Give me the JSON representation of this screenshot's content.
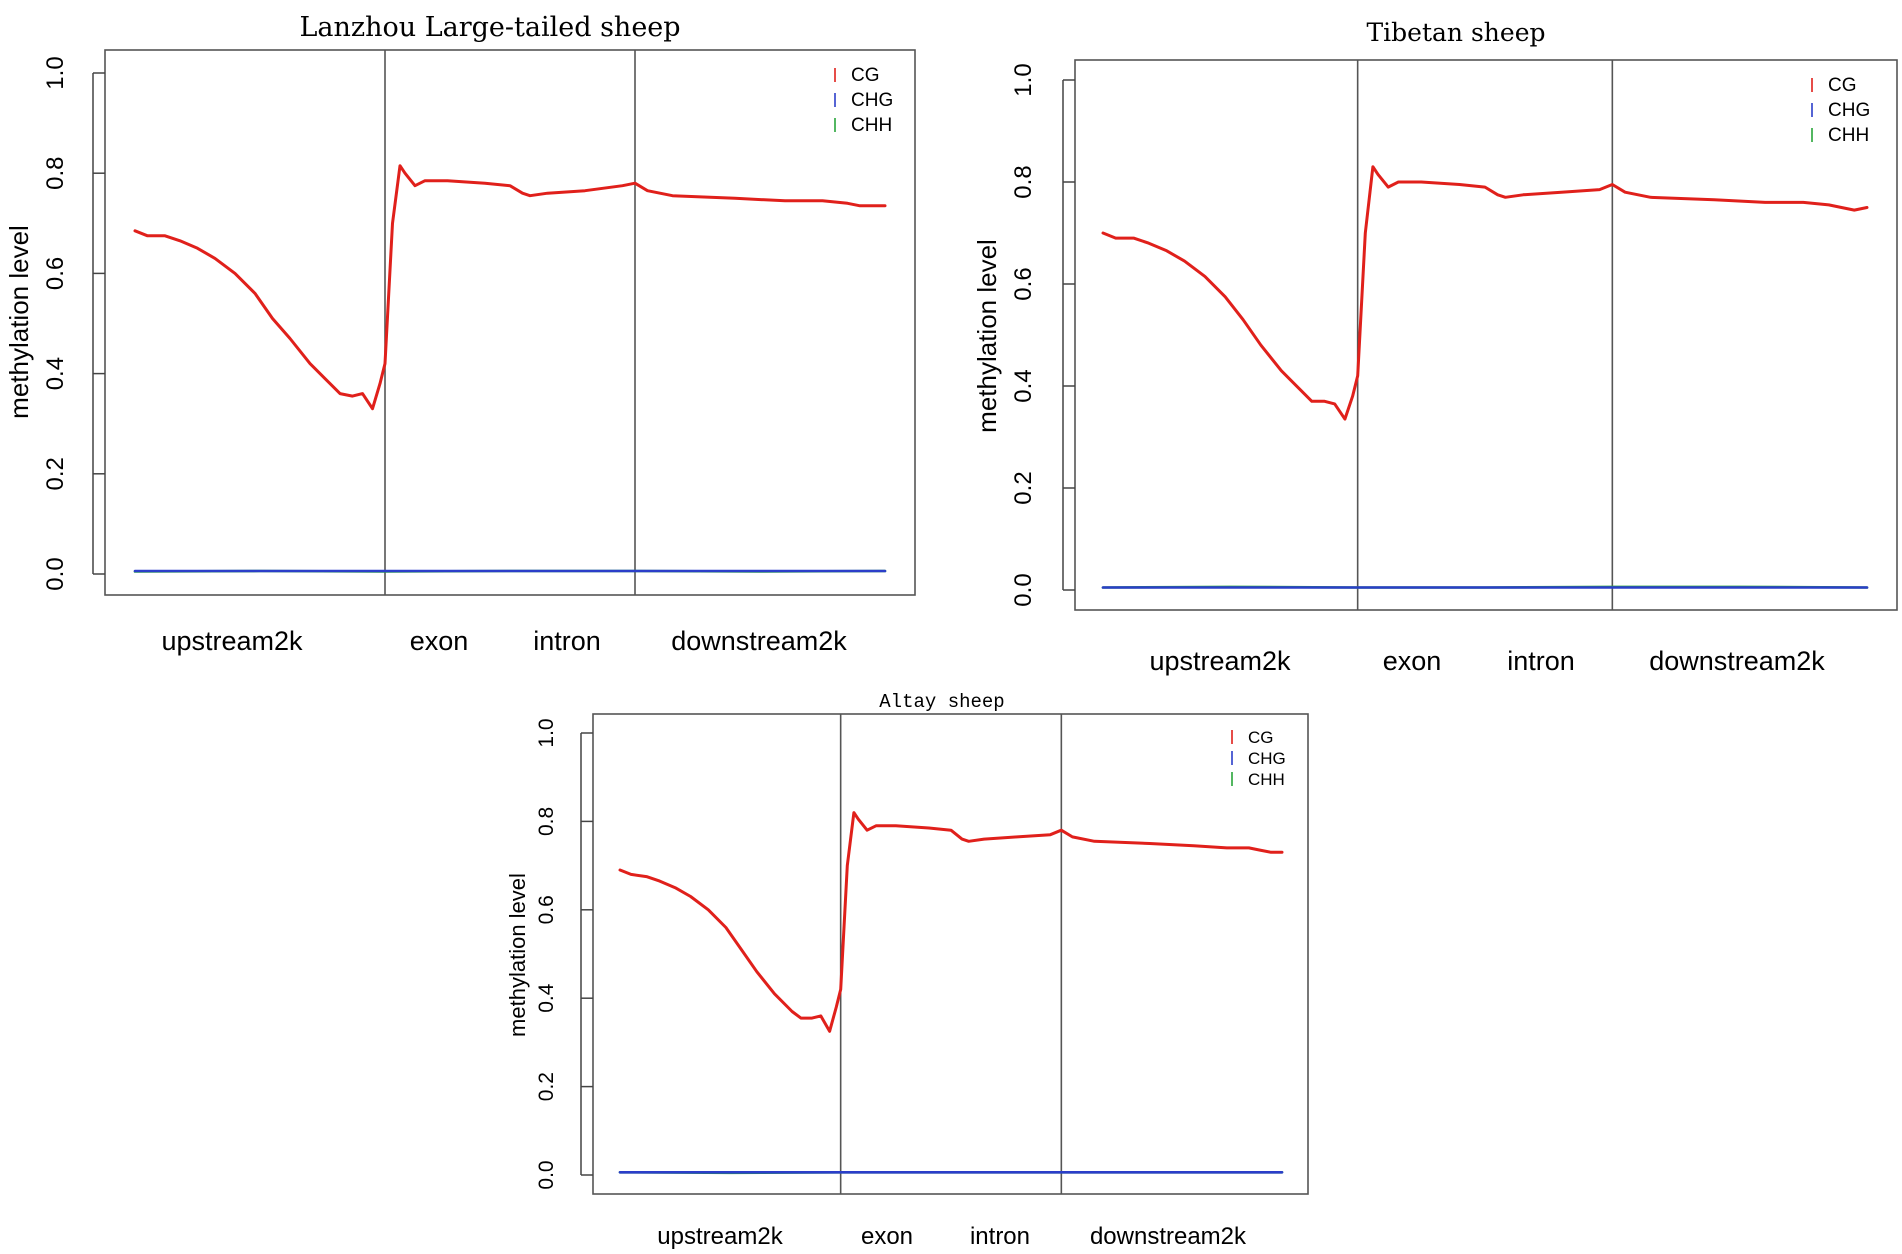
{
  "chart_data": [
    {
      "type": "line",
      "title": "Lanzhou Large-tailed sheep",
      "xlabel": "",
      "ylabel": "methylation level",
      "ylim": [
        0,
        1
      ],
      "yticks": [
        "0.0",
        "0.2",
        "0.4",
        "0.6",
        "0.8",
        "1.0"
      ],
      "region_labels": [
        "upstream2k",
        "exon",
        "intron",
        "downstream2k"
      ],
      "region_boundaries": [
        100,
        200
      ],
      "x_range": [
        0,
        300
      ],
      "legend": [
        "CG",
        "CHG",
        "CHH"
      ],
      "legend_position": "top-right",
      "grid": false,
      "series": [
        {
          "name": "CG",
          "color": "#e0201b",
          "points": [
            [
              0,
              0.685
            ],
            [
              5,
              0.675
            ],
            [
              12,
              0.675
            ],
            [
              18,
              0.665
            ],
            [
              25,
              0.65
            ],
            [
              32,
              0.63
            ],
            [
              40,
              0.6
            ],
            [
              48,
              0.56
            ],
            [
              55,
              0.51
            ],
            [
              62,
              0.47
            ],
            [
              70,
              0.42
            ],
            [
              78,
              0.38
            ],
            [
              82,
              0.36
            ],
            [
              87,
              0.355
            ],
            [
              91,
              0.36
            ],
            [
              95,
              0.33
            ],
            [
              98,
              0.38
            ],
            [
              100,
              0.42
            ],
            [
              103,
              0.7
            ],
            [
              106,
              0.815
            ],
            [
              108,
              0.8
            ],
            [
              112,
              0.775
            ],
            [
              116,
              0.785
            ],
            [
              125,
              0.785
            ],
            [
              140,
              0.78
            ],
            [
              150,
              0.775
            ],
            [
              155,
              0.76
            ],
            [
              158,
              0.755
            ],
            [
              165,
              0.76
            ],
            [
              180,
              0.765
            ],
            [
              195,
              0.775
            ],
            [
              200,
              0.78
            ],
            [
              205,
              0.765
            ],
            [
              215,
              0.755
            ],
            [
              240,
              0.75
            ],
            [
              260,
              0.745
            ],
            [
              275,
              0.745
            ],
            [
              285,
              0.74
            ],
            [
              290,
              0.735
            ],
            [
              295,
              0.735
            ],
            [
              300,
              0.735
            ]
          ]
        },
        {
          "name": "CHG",
          "color": "#2b3ec9",
          "points": [
            [
              0,
              0.006
            ],
            [
              100,
              0.006
            ],
            [
              200,
              0.006
            ],
            [
              300,
              0.006
            ]
          ]
        },
        {
          "name": "CHH",
          "color": "#28a53a",
          "points": [
            [
              0,
              0.005
            ],
            [
              50,
              0.006
            ],
            [
              100,
              0.005
            ],
            [
              150,
              0.006
            ],
            [
              200,
              0.006
            ],
            [
              250,
              0.005
            ],
            [
              300,
              0.006
            ]
          ]
        }
      ]
    },
    {
      "type": "line",
      "title": "Tibetan sheep",
      "xlabel": "",
      "ylabel": "methylation level",
      "ylim": [
        0,
        1
      ],
      "yticks": [
        "0.0",
        "0.2",
        "0.4",
        "0.6",
        "0.8",
        "1.0"
      ],
      "region_labels": [
        "upstream2k",
        "exon",
        "intron",
        "downstream2k"
      ],
      "region_boundaries": [
        100,
        200
      ],
      "x_range": [
        0,
        300
      ],
      "legend": [
        "CG",
        "CHG",
        "CHH"
      ],
      "legend_position": "top-right",
      "grid": false,
      "series": [
        {
          "name": "CG",
          "color": "#e0201b",
          "points": [
            [
              0,
              0.7
            ],
            [
              5,
              0.69
            ],
            [
              12,
              0.69
            ],
            [
              18,
              0.68
            ],
            [
              25,
              0.665
            ],
            [
              32,
              0.645
            ],
            [
              40,
              0.615
            ],
            [
              48,
              0.575
            ],
            [
              55,
              0.53
            ],
            [
              62,
              0.48
            ],
            [
              70,
              0.43
            ],
            [
              78,
              0.39
            ],
            [
              82,
              0.37
            ],
            [
              87,
              0.37
            ],
            [
              91,
              0.365
            ],
            [
              95,
              0.335
            ],
            [
              98,
              0.38
            ],
            [
              100,
              0.42
            ],
            [
              103,
              0.7
            ],
            [
              106,
              0.83
            ],
            [
              108,
              0.815
            ],
            [
              112,
              0.79
            ],
            [
              116,
              0.8
            ],
            [
              125,
              0.8
            ],
            [
              140,
              0.795
            ],
            [
              150,
              0.79
            ],
            [
              155,
              0.775
            ],
            [
              158,
              0.77
            ],
            [
              165,
              0.775
            ],
            [
              180,
              0.78
            ],
            [
              195,
              0.785
            ],
            [
              200,
              0.795
            ],
            [
              205,
              0.78
            ],
            [
              215,
              0.77
            ],
            [
              240,
              0.765
            ],
            [
              260,
              0.76
            ],
            [
              275,
              0.76
            ],
            [
              285,
              0.755
            ],
            [
              290,
              0.75
            ],
            [
              295,
              0.745
            ],
            [
              300,
              0.75
            ]
          ]
        },
        {
          "name": "CHG",
          "color": "#2b3ec9",
          "points": [
            [
              0,
              0.005
            ],
            [
              100,
              0.005
            ],
            [
              200,
              0.005
            ],
            [
              300,
              0.005
            ]
          ]
        },
        {
          "name": "CHH",
          "color": "#28a53a",
          "points": [
            [
              0,
              0.005
            ],
            [
              50,
              0.006
            ],
            [
              100,
              0.005
            ],
            [
              150,
              0.005
            ],
            [
              200,
              0.006
            ],
            [
              250,
              0.006
            ],
            [
              300,
              0.005
            ]
          ]
        }
      ]
    },
    {
      "type": "line",
      "title": "Altay sheep",
      "xlabel": "",
      "ylabel": "methylation level",
      "ylim": [
        0,
        1
      ],
      "yticks": [
        "0.0",
        "0.2",
        "0.4",
        "0.6",
        "0.8",
        "1.0"
      ],
      "region_labels": [
        "upstream2k",
        "exon",
        "intron",
        "downstream2k"
      ],
      "region_boundaries": [
        100,
        200
      ],
      "x_range": [
        0,
        300
      ],
      "legend": [
        "CG",
        "CHG",
        "CHH"
      ],
      "legend_position": "top-right",
      "grid": false,
      "series": [
        {
          "name": "CG",
          "color": "#e0201b",
          "points": [
            [
              0,
              0.69
            ],
            [
              5,
              0.68
            ],
            [
              12,
              0.675
            ],
            [
              18,
              0.665
            ],
            [
              25,
              0.65
            ],
            [
              32,
              0.63
            ],
            [
              40,
              0.6
            ],
            [
              48,
              0.56
            ],
            [
              55,
              0.51
            ],
            [
              62,
              0.46
            ],
            [
              70,
              0.41
            ],
            [
              78,
              0.37
            ],
            [
              82,
              0.355
            ],
            [
              87,
              0.355
            ],
            [
              91,
              0.36
            ],
            [
              95,
              0.325
            ],
            [
              98,
              0.38
            ],
            [
              100,
              0.42
            ],
            [
              103,
              0.7
            ],
            [
              106,
              0.82
            ],
            [
              108,
              0.805
            ],
            [
              112,
              0.78
            ],
            [
              116,
              0.79
            ],
            [
              125,
              0.79
            ],
            [
              140,
              0.785
            ],
            [
              150,
              0.78
            ],
            [
              155,
              0.76
            ],
            [
              158,
              0.755
            ],
            [
              165,
              0.76
            ],
            [
              180,
              0.765
            ],
            [
              195,
              0.77
            ],
            [
              200,
              0.78
            ],
            [
              205,
              0.765
            ],
            [
              215,
              0.755
            ],
            [
              240,
              0.75
            ],
            [
              260,
              0.745
            ],
            [
              275,
              0.74
            ],
            [
              285,
              0.74
            ],
            [
              290,
              0.735
            ],
            [
              295,
              0.73
            ],
            [
              300,
              0.73
            ]
          ]
        },
        {
          "name": "CHG",
          "color": "#2b3ec9",
          "points": [
            [
              0,
              0.006
            ],
            [
              100,
              0.006
            ],
            [
              200,
              0.006
            ],
            [
              300,
              0.006
            ]
          ]
        },
        {
          "name": "CHH",
          "color": "#28a53a",
          "points": [
            [
              0,
              0.006
            ],
            [
              50,
              0.005
            ],
            [
              100,
              0.006
            ],
            [
              150,
              0.006
            ],
            [
              200,
              0.006
            ],
            [
              250,
              0.006
            ],
            [
              300,
              0.006
            ]
          ]
        }
      ]
    }
  ]
}
